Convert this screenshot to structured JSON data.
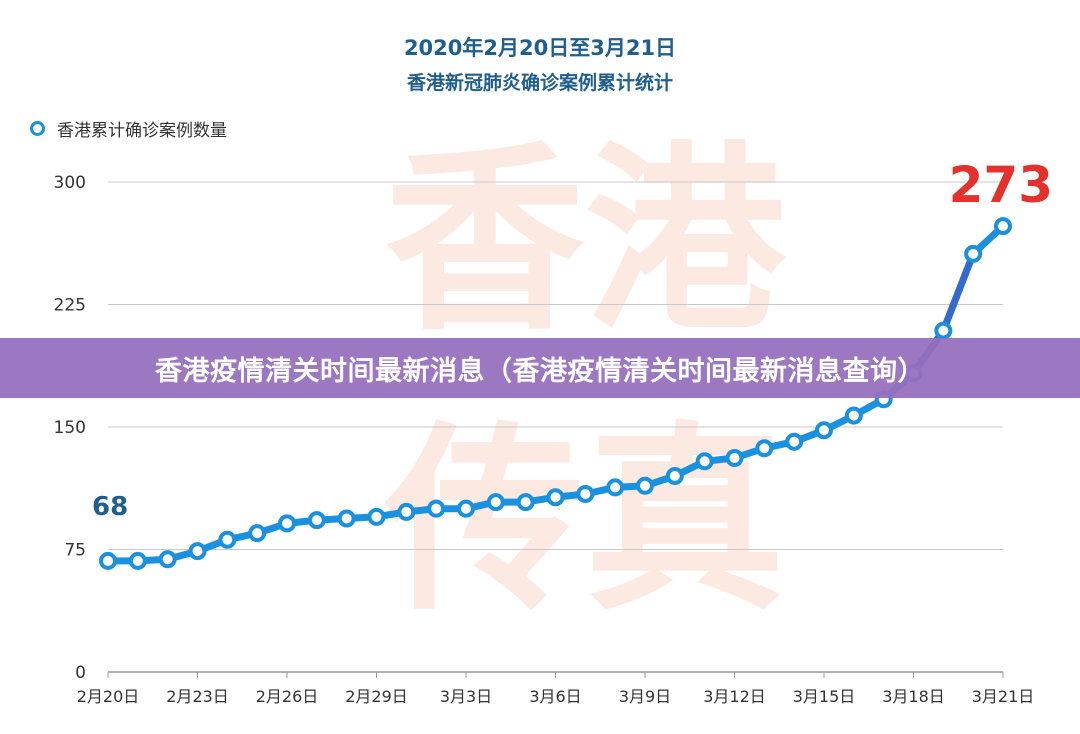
{
  "header": {
    "title_line1": "2020年2月20日至3月21日",
    "title_line2": "香港新冠肺炎确诊案例累计统计"
  },
  "legend": {
    "label": "香港累计确诊案例数量"
  },
  "banner": {
    "text": "香港疫情清关时间最新消息（香港疫情清关时间最新消息查询）"
  },
  "watermark": {
    "text": "香港传真"
  },
  "colors": {
    "line": "#1a90e0",
    "line_dark": "#3a63c9",
    "start_label": "#1f5f8f",
    "end_label": "#e4312b",
    "grid": "#c8c8c8",
    "watermark": "#fbe9e2"
  },
  "chart_data": {
    "type": "line",
    "title": "2020年2月20日至3月21日",
    "subtitle": "香港新冠肺炎确诊案例累计统计",
    "xlabel": "",
    "ylabel": "",
    "ylim": [
      0,
      300
    ],
    "yticks": [
      0,
      75,
      150,
      225,
      300
    ],
    "xtick_labels": [
      "2月20日",
      "2月23日",
      "2月26日",
      "2月29日",
      "3月3日",
      "3月6日",
      "3月9日",
      "3月12日",
      "3月15日",
      "3月18日",
      "3月21日"
    ],
    "x": [
      "2月20日",
      "2月21日",
      "2月22日",
      "2月23日",
      "2月24日",
      "2月25日",
      "2月26日",
      "2月27日",
      "2月28日",
      "2月29日",
      "3月1日",
      "3月2日",
      "3月3日",
      "3月4日",
      "3月5日",
      "3月6日",
      "3月7日",
      "3月8日",
      "3月9日",
      "3月10日",
      "3月11日",
      "3月12日",
      "3月13日",
      "3月14日",
      "3月15日",
      "3月16日",
      "3月17日",
      "3月18日",
      "3月19日",
      "3月20日",
      "3月21日"
    ],
    "series": [
      {
        "name": "香港累计确诊案例数量",
        "values": [
          68,
          68,
          69,
          74,
          81,
          85,
          91,
          93,
          94,
          95,
          98,
          100,
          100,
          104,
          104,
          107,
          109,
          113,
          114,
          120,
          129,
          131,
          137,
          141,
          148,
          157,
          167,
          183,
          209,
          256,
          273
        ]
      }
    ],
    "annotations": [
      {
        "label": "68",
        "index": 0
      },
      {
        "label": "273",
        "index": 30
      }
    ],
    "grid": true,
    "legend_position": "top-left"
  }
}
